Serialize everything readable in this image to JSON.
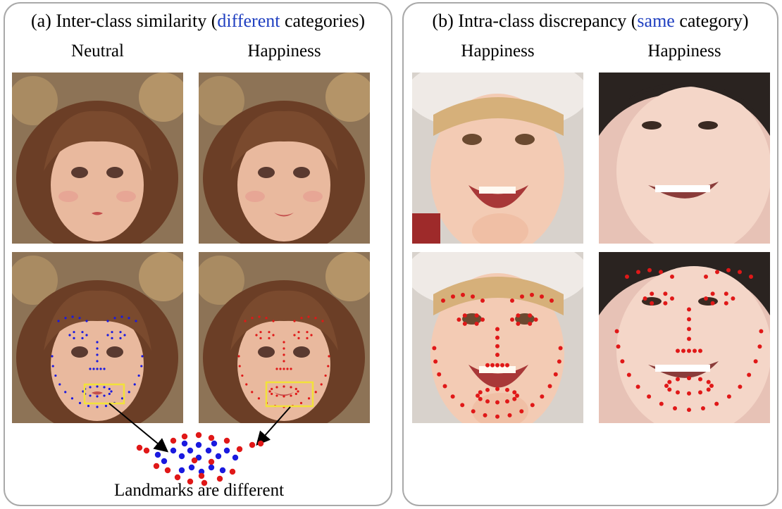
{
  "panel_a": {
    "title_prefix": "(a) Inter-class similarity (",
    "title_highlight": "different",
    "title_suffix": " categories)",
    "col_left": "Neutral",
    "col_right": "Happiness",
    "caption": "Landmarks are different"
  },
  "panel_b": {
    "title_prefix": "(b) Intra-class discrepancy (",
    "title_highlight": "same",
    "title_suffix": " category)",
    "col_left": "Happiness",
    "col_right": "Happiness"
  },
  "colors": {
    "highlight_text": "#1f3fc0",
    "landmark_blue": "#1a1adf",
    "landmark_red": "#e01818",
    "box_yellow": "#f2e23a",
    "panel_border": "#a9a9a9"
  }
}
